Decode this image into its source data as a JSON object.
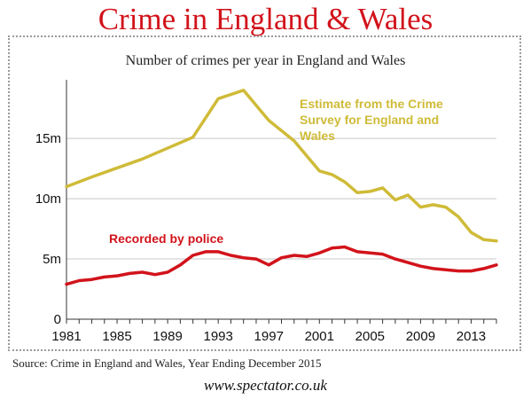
{
  "header": {
    "title": "Crime in England & Wales"
  },
  "footer": {
    "source": "Source: Crime in England and Wales, Year Ending December 2015",
    "credit": "www.spectator.co.uk"
  },
  "chart_data": {
    "type": "line",
    "title": "Number of crimes per year in England and Wales",
    "xlabel": "",
    "ylabel": "",
    "x_ticks": [
      "1981",
      "1985",
      "1989",
      "1993",
      "1997",
      "2001",
      "2005",
      "2009",
      "2013"
    ],
    "y_ticks": [
      "0",
      "5m",
      "10m",
      "15m"
    ],
    "xlim": [
      1981,
      2015
    ],
    "ylim": [
      0,
      19.5
    ],
    "grid": "horizontal",
    "series": [
      {
        "name": "Estimate from the Crime Survey for England and Wales",
        "color": "#cfbb38",
        "points": [
          [
            1981,
            11.0
          ],
          [
            1983,
            11.8
          ],
          [
            1987,
            13.3
          ],
          [
            1991,
            15.1
          ],
          [
            1993,
            18.3
          ],
          [
            1995,
            19.0
          ],
          [
            1997,
            16.5
          ],
          [
            1999,
            14.8
          ],
          [
            2001,
            12.3
          ],
          [
            2002,
            12.0
          ],
          [
            2003,
            11.4
          ],
          [
            2004,
            10.5
          ],
          [
            2005,
            10.6
          ],
          [
            2006,
            10.9
          ],
          [
            2007,
            9.9
          ],
          [
            2008,
            10.3
          ],
          [
            2009,
            9.3
          ],
          [
            2010,
            9.5
          ],
          [
            2011,
            9.3
          ],
          [
            2012,
            8.5
          ],
          [
            2013,
            7.2
          ],
          [
            2014,
            6.6
          ],
          [
            2015,
            6.5
          ]
        ]
      },
      {
        "name": "Recorded by police",
        "color": "#d2131b",
        "points": [
          [
            1981,
            2.9
          ],
          [
            1982,
            3.2
          ],
          [
            1983,
            3.3
          ],
          [
            1984,
            3.5
          ],
          [
            1985,
            3.6
          ],
          [
            1986,
            3.8
          ],
          [
            1987,
            3.9
          ],
          [
            1988,
            3.7
          ],
          [
            1989,
            3.9
          ],
          [
            1990,
            4.5
          ],
          [
            1991,
            5.3
          ],
          [
            1992,
            5.6
          ],
          [
            1993,
            5.6
          ],
          [
            1994,
            5.3
          ],
          [
            1995,
            5.1
          ],
          [
            1996,
            5.0
          ],
          [
            1997,
            4.5
          ],
          [
            1998,
            5.1
          ],
          [
            1999,
            5.3
          ],
          [
            2000,
            5.2
          ],
          [
            2001,
            5.5
          ],
          [
            2002,
            5.9
          ],
          [
            2003,
            6.0
          ],
          [
            2004,
            5.6
          ],
          [
            2005,
            5.5
          ],
          [
            2006,
            5.4
          ],
          [
            2007,
            5.0
          ],
          [
            2008,
            4.7
          ],
          [
            2009,
            4.4
          ],
          [
            2010,
            4.2
          ],
          [
            2011,
            4.1
          ],
          [
            2012,
            4.0
          ],
          [
            2013,
            4.0
          ],
          [
            2014,
            4.2
          ],
          [
            2015,
            4.5
          ]
        ]
      }
    ],
    "annotations": [
      {
        "series_index": 0,
        "lines": [
          "Estimate from the Crime",
          "Survey for England and",
          "Wales"
        ]
      },
      {
        "series_index": 1,
        "lines": [
          "Recorded by police"
        ]
      }
    ]
  }
}
